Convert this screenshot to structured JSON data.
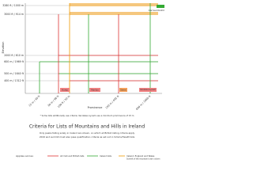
{
  "y_axis": {
    "title": "Elevation",
    "labels": [
      "3280 ft / 1000 m",
      "3000 ft / 914 m",
      "2000 ft / 610 m",
      "600 m / 1969 ft",
      "500 m / 1640 ft",
      "400 m / 1312 ft"
    ]
  },
  "x_axis": {
    "title": "Prominence",
    "labels": [
      "15 m / 49 ft",
      "30 m / 98 ft",
      "100 ft / 30 m",
      "150 m / 492 ft",
      "600 m / 1969 ft"
    ]
  },
  "peak": "Carrauntoohil",
  "lists": [
    "Hump",
    "Marilyn",
    "Simm",
    "Vandeleur-Lynam"
  ],
  "footnote": "* Some lists additionally use criteria; Vandeleur-Lynam use a minimum prominence of 15 m",
  "title": "Criteria for Lists of Mountains and Hills in Ireland",
  "subtitle": [
    "Only peaks falling solely in Ireland are shown, on which all British listing criteria apply",
    "2019 and summit must also pass qualification criteria as set out in Simms/Hewitt lists"
  ],
  "legend": {
    "heading": "Applies across:",
    "items": [
      "All Irish and British lists",
      "Ireland lists",
      "Ireland, England and Wales",
      "Summit of the mountain's own column"
    ]
  }
}
